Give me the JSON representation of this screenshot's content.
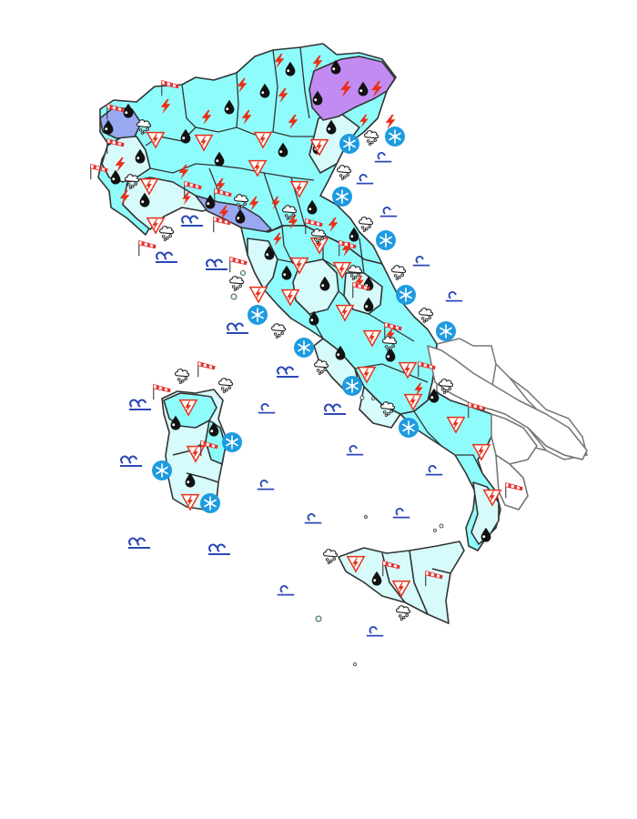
{
  "map": {
    "colors": {
      "background": "#ffffff",
      "border": "#333333",
      "border_outside": "#777777",
      "alert_high": "#c28bf2",
      "alert_medium": "#98a9f2",
      "alert_low_cyan": "#8ffcfc",
      "alert_low_pale": "#d7fafa",
      "outside": "#ffffff",
      "lightning": "#e83018",
      "rain": "#111111",
      "wind_red": "#e83030",
      "sea": "#2c48b8",
      "snow_badge": "#1e9be0"
    },
    "icon_types": {
      "lightning": "lightning-icon",
      "rain": "raindrop-icon",
      "storm": "thunderstorm-icon",
      "wind": "windsock-icon",
      "hail": "hail-icon",
      "snow": "snow-badge-icon",
      "sea": "wave-icon"
    }
  }
}
